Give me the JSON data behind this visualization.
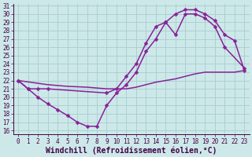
{
  "background_color": "#cce8e8",
  "grid_color": "#aacccc",
  "line_color": "#882299",
  "axis_color": "#440044",
  "xlabel": "Windchill (Refroidissement éolien,°C)",
  "xlim": [
    -0.5,
    23.5
  ],
  "ylim": [
    15.5,
    31.2
  ],
  "xticks": [
    0,
    1,
    2,
    3,
    4,
    5,
    6,
    7,
    8,
    9,
    10,
    11,
    12,
    13,
    14,
    15,
    16,
    17,
    18,
    19,
    20,
    21,
    22,
    23
  ],
  "yticks": [
    16,
    17,
    18,
    19,
    20,
    21,
    22,
    23,
    24,
    25,
    26,
    27,
    28,
    29,
    30,
    31
  ],
  "curve1_x": [
    0,
    1,
    2,
    3,
    4,
    5,
    6,
    7,
    8,
    9,
    10,
    11,
    12,
    13,
    14,
    15,
    16,
    17,
    18,
    19,
    20,
    21,
    22,
    23
  ],
  "curve1_y": [
    22.0,
    21.0,
    20.0,
    19.2,
    18.5,
    17.8,
    17.0,
    16.5,
    16.5,
    19.0,
    20.5,
    21.5,
    23.0,
    25.5,
    27.0,
    29.0,
    30.0,
    30.5,
    30.5,
    30.0,
    29.2,
    27.5,
    26.8,
    23.2
  ],
  "curve2_x": [
    0,
    1,
    2,
    3,
    9,
    10,
    11,
    12,
    13,
    14,
    15,
    16,
    17,
    18,
    19,
    20,
    21,
    23
  ],
  "curve2_y": [
    22.0,
    21.0,
    21.0,
    21.0,
    20.5,
    21.0,
    22.5,
    24.0,
    26.5,
    28.5,
    29.0,
    27.5,
    30.0,
    30.0,
    29.5,
    28.5,
    26.0,
    23.5
  ],
  "curve3_x": [
    0,
    3,
    5,
    7,
    9,
    10,
    11,
    12,
    13,
    14,
    15,
    16,
    17,
    18,
    19,
    20,
    21,
    22,
    23
  ],
  "curve3_y": [
    22.0,
    21.5,
    21.3,
    21.2,
    21.0,
    21.0,
    21.0,
    21.2,
    21.5,
    21.8,
    22.0,
    22.2,
    22.5,
    22.8,
    23.0,
    23.0,
    23.0,
    23.0,
    23.2
  ],
  "tick_fontsize": 5.5,
  "xlabel_fontsize": 7,
  "linewidth": 1.1,
  "markersize": 2.5
}
